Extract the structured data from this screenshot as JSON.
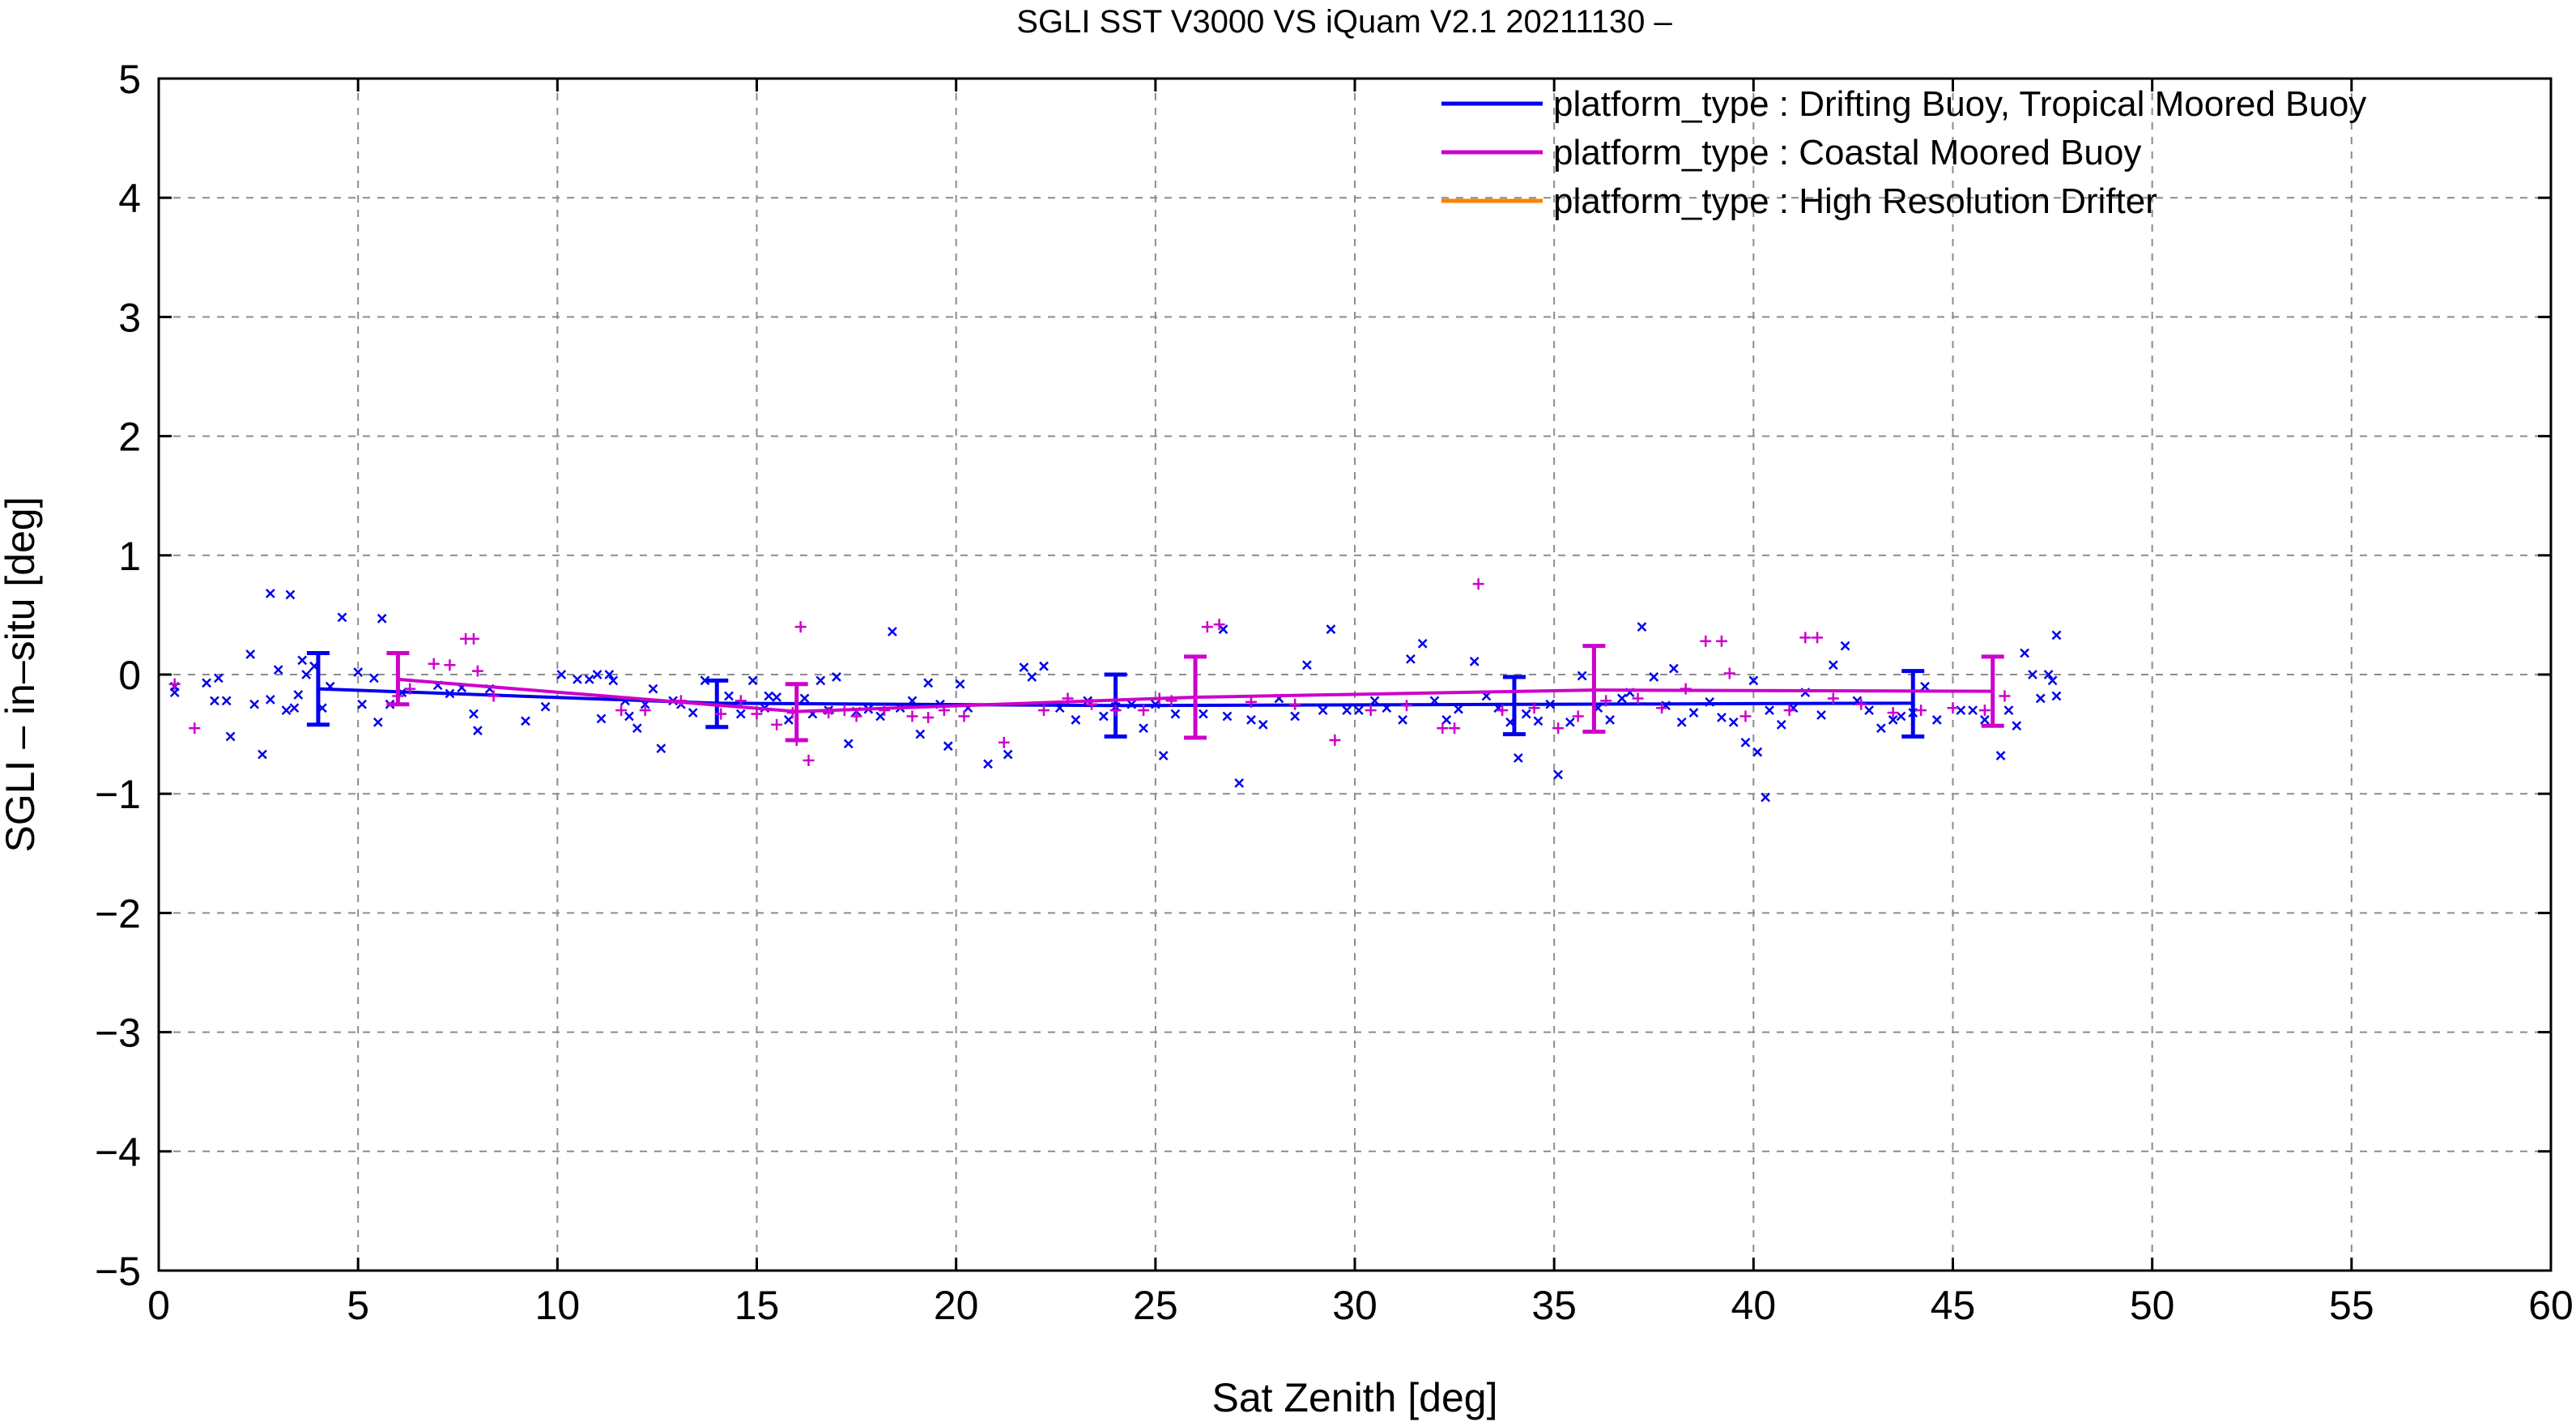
{
  "chart_data": {
    "type": "line",
    "title": "SGLI SST V3000 VS iQuam V2.1 20211130 –",
    "xlabel": "Sat Zenith [deg]",
    "ylabel": "SGLI – in–situ [deg]",
    "xlim": [
      0,
      60
    ],
    "ylim": [
      -5,
      5
    ],
    "x_ticks": [
      0,
      5,
      10,
      15,
      20,
      25,
      30,
      35,
      40,
      45,
      50,
      55,
      60
    ],
    "y_ticks": [
      -5,
      -4,
      -3,
      -2,
      -1,
      0,
      1,
      2,
      3,
      4,
      5
    ],
    "x_tick_labels": [
      "0",
      "5",
      "10",
      "15",
      "20",
      "25",
      "30",
      "35",
      "40",
      "45",
      "50",
      "55",
      "60"
    ],
    "y_tick_labels": [
      "−5",
      "−4",
      "−3",
      "−2",
      "−1",
      "0",
      "1",
      "2",
      "3",
      "4",
      "5"
    ],
    "grid": true,
    "legend_position": "top-right",
    "series": [
      {
        "name": "platform_type : Drifting Buoy, Tropical Moored Buoy",
        "color": "#0000ee",
        "marker": "x",
        "line": {
          "x": [
            4,
            14,
            24,
            34,
            44
          ],
          "y": [
            -0.12,
            -0.24,
            -0.26,
            -0.25,
            -0.24
          ],
          "err_low": [
            -0.42,
            -0.44,
            -0.52,
            -0.5,
            -0.52
          ],
          "err_high": [
            0.18,
            -0.05,
            0.0,
            -0.02,
            0.03
          ]
        },
        "scatter": [
          [
            0.4,
            -0.15
          ],
          [
            0.4,
            -0.1
          ],
          [
            1.2,
            -0.07
          ],
          [
            1.4,
            -0.22
          ],
          [
            1.5,
            -0.03
          ],
          [
            1.7,
            -0.22
          ],
          [
            1.8,
            -0.52
          ],
          [
            2.3,
            0.17
          ],
          [
            2.4,
            -0.25
          ],
          [
            2.6,
            -0.67
          ],
          [
            2.8,
            -0.21
          ],
          [
            2.8,
            0.68
          ],
          [
            3.0,
            0.04
          ],
          [
            3.2,
            -0.3
          ],
          [
            3.3,
            0.67
          ],
          [
            3.4,
            -0.28
          ],
          [
            3.5,
            -0.17
          ],
          [
            3.6,
            0.12
          ],
          [
            3.7,
            0.0
          ],
          [
            3.9,
            0.07
          ],
          [
            4.1,
            -0.28
          ],
          [
            4.3,
            -0.1
          ],
          [
            4.6,
            0.48
          ],
          [
            5.0,
            0.02
          ],
          [
            5.1,
            -0.25
          ],
          [
            5.4,
            -0.03
          ],
          [
            5.5,
            -0.4
          ],
          [
            5.6,
            0.47
          ],
          [
            5.8,
            -0.25
          ],
          [
            6.1,
            -0.15
          ],
          [
            7.0,
            -0.09
          ],
          [
            7.3,
            -0.16
          ],
          [
            7.6,
            -0.11
          ],
          [
            7.9,
            -0.33
          ],
          [
            8.0,
            -0.47
          ],
          [
            8.3,
            -0.12
          ],
          [
            9.2,
            -0.39
          ],
          [
            9.7,
            -0.27
          ],
          [
            10.1,
            0.0
          ],
          [
            10.5,
            -0.04
          ],
          [
            10.8,
            -0.04
          ],
          [
            11.0,
            0.0
          ],
          [
            11.1,
            -0.37
          ],
          [
            11.3,
            0.0
          ],
          [
            11.4,
            -0.05
          ],
          [
            11.7,
            -0.22
          ],
          [
            11.8,
            -0.35
          ],
          [
            12.0,
            -0.45
          ],
          [
            12.2,
            -0.25
          ],
          [
            12.4,
            -0.12
          ],
          [
            12.6,
            -0.62
          ],
          [
            12.9,
            -0.22
          ],
          [
            13.1,
            -0.25
          ],
          [
            13.4,
            -0.32
          ],
          [
            13.7,
            -0.05
          ],
          [
            14.3,
            -0.18
          ],
          [
            14.6,
            -0.33
          ],
          [
            14.9,
            -0.05
          ],
          [
            15.2,
            -0.28
          ],
          [
            15.3,
            -0.18
          ],
          [
            15.5,
            -0.19
          ],
          [
            15.8,
            -0.38
          ],
          [
            16.2,
            -0.2
          ],
          [
            16.4,
            -0.33
          ],
          [
            16.6,
            -0.05
          ],
          [
            16.8,
            -0.3
          ],
          [
            17.0,
            -0.02
          ],
          [
            17.3,
            -0.58
          ],
          [
            17.5,
            -0.31
          ],
          [
            17.8,
            -0.29
          ],
          [
            18.1,
            -0.35
          ],
          [
            18.4,
            0.36
          ],
          [
            18.6,
            -0.28
          ],
          [
            18.9,
            -0.22
          ],
          [
            19.1,
            -0.5
          ],
          [
            19.3,
            -0.07
          ],
          [
            19.6,
            -0.25
          ],
          [
            19.8,
            -0.6
          ],
          [
            20.1,
            -0.08
          ],
          [
            20.3,
            -0.28
          ],
          [
            20.8,
            -0.75
          ],
          [
            21.3,
            -0.67
          ],
          [
            21.7,
            0.06
          ],
          [
            21.9,
            -0.02
          ],
          [
            22.2,
            0.07
          ],
          [
            22.6,
            -0.28
          ],
          [
            23.0,
            -0.38
          ],
          [
            23.3,
            -0.22
          ],
          [
            23.7,
            -0.35
          ],
          [
            24.0,
            -0.27
          ],
          [
            24.4,
            -0.25
          ],
          [
            24.7,
            -0.45
          ],
          [
            25.0,
            -0.25
          ],
          [
            25.2,
            -0.68
          ],
          [
            25.5,
            -0.33
          ],
          [
            26.2,
            -0.33
          ],
          [
            26.7,
            0.38
          ],
          [
            26.8,
            -0.35
          ],
          [
            27.1,
            -0.91
          ],
          [
            27.4,
            -0.38
          ],
          [
            27.7,
            -0.42
          ],
          [
            28.1,
            -0.2
          ],
          [
            28.5,
            -0.35
          ],
          [
            28.8,
            0.08
          ],
          [
            29.2,
            -0.3
          ],
          [
            29.4,
            0.38
          ],
          [
            29.8,
            -0.3
          ],
          [
            30.1,
            -0.3
          ],
          [
            30.5,
            -0.22
          ],
          [
            30.8,
            -0.28
          ],
          [
            31.2,
            -0.38
          ],
          [
            31.4,
            0.13
          ],
          [
            31.7,
            0.26
          ],
          [
            32.0,
            -0.22
          ],
          [
            32.3,
            -0.38
          ],
          [
            32.6,
            -0.29
          ],
          [
            33.0,
            0.11
          ],
          [
            33.3,
            -0.18
          ],
          [
            33.6,
            -0.28
          ],
          [
            33.9,
            -0.4
          ],
          [
            34.1,
            -0.7
          ],
          [
            34.3,
            -0.33
          ],
          [
            34.6,
            -0.39
          ],
          [
            34.9,
            -0.25
          ],
          [
            35.1,
            -0.84
          ],
          [
            35.4,
            -0.4
          ],
          [
            35.7,
            -0.01
          ],
          [
            36.1,
            -0.28
          ],
          [
            36.4,
            -0.38
          ],
          [
            36.7,
            -0.2
          ],
          [
            36.9,
            -0.15
          ],
          [
            37.2,
            0.4
          ],
          [
            37.5,
            -0.02
          ],
          [
            37.8,
            -0.26
          ],
          [
            38.0,
            0.05
          ],
          [
            38.2,
            -0.4
          ],
          [
            38.5,
            -0.32
          ],
          [
            38.9,
            -0.23
          ],
          [
            39.2,
            -0.36
          ],
          [
            39.5,
            -0.4
          ],
          [
            39.8,
            -0.57
          ],
          [
            40.0,
            -0.05
          ],
          [
            40.1,
            -0.65
          ],
          [
            40.3,
            -1.03
          ],
          [
            40.4,
            -0.3
          ],
          [
            40.7,
            -0.42
          ],
          [
            41.0,
            -0.28
          ],
          [
            41.3,
            -0.15
          ],
          [
            41.7,
            -0.34
          ],
          [
            42.0,
            0.08
          ],
          [
            42.3,
            0.24
          ],
          [
            42.6,
            -0.22
          ],
          [
            42.9,
            -0.3
          ],
          [
            43.2,
            -0.45
          ],
          [
            43.5,
            -0.38
          ],
          [
            43.7,
            -0.35
          ],
          [
            44.0,
            -0.32
          ],
          [
            44.3,
            -0.1
          ],
          [
            44.6,
            -0.38
          ],
          [
            45.2,
            -0.3
          ],
          [
            45.5,
            -0.3
          ],
          [
            45.8,
            -0.38
          ],
          [
            46.2,
            -0.68
          ],
          [
            46.4,
            -0.3
          ],
          [
            46.6,
            -0.43
          ],
          [
            46.8,
            0.18
          ],
          [
            47.0,
            0.0
          ],
          [
            47.2,
            -0.2
          ],
          [
            47.4,
            0.0
          ],
          [
            47.6,
            0.33
          ],
          [
            47.6,
            -0.18
          ],
          [
            47.5,
            -0.05
          ]
        ]
      },
      {
        "name": "platform_type : Coastal Moored Buoy",
        "color": "#cc00cc",
        "marker": "+",
        "line": {
          "x": [
            6,
            16,
            26,
            36,
            46
          ],
          "y": [
            -0.04,
            -0.31,
            -0.19,
            -0.13,
            -0.14
          ],
          "err_low": [
            -0.25,
            -0.55,
            -0.53,
            -0.48,
            -0.43
          ],
          "err_high": [
            0.18,
            -0.08,
            0.15,
            0.24,
            0.15
          ]
        },
        "scatter": [
          [
            0.4,
            -0.08
          ],
          [
            0.9,
            -0.45
          ],
          [
            6.0,
            -0.18
          ],
          [
            6.3,
            -0.12
          ],
          [
            6.9,
            0.09
          ],
          [
            7.3,
            0.08
          ],
          [
            7.7,
            0.3
          ],
          [
            7.9,
            0.3
          ],
          [
            8.0,
            0.03
          ],
          [
            8.4,
            -0.18
          ],
          [
            11.6,
            -0.3
          ],
          [
            12.2,
            -0.3
          ],
          [
            13.1,
            -0.22
          ],
          [
            14.1,
            -0.33
          ],
          [
            14.6,
            -0.22
          ],
          [
            15.0,
            -0.33
          ],
          [
            15.5,
            -0.42
          ],
          [
            15.9,
            -0.32
          ],
          [
            16.0,
            -0.55
          ],
          [
            16.3,
            -0.72
          ],
          [
            16.1,
            0.4
          ],
          [
            16.8,
            -0.32
          ],
          [
            17.2,
            -0.3
          ],
          [
            17.5,
            -0.35
          ],
          [
            18.2,
            -0.3
          ],
          [
            18.9,
            -0.35
          ],
          [
            19.3,
            -0.36
          ],
          [
            19.7,
            -0.3
          ],
          [
            20.2,
            -0.35
          ],
          [
            21.2,
            -0.57
          ],
          [
            22.2,
            -0.3
          ],
          [
            22.8,
            -0.2
          ],
          [
            23.4,
            -0.25
          ],
          [
            24.0,
            -0.3
          ],
          [
            24.7,
            -0.3
          ],
          [
            25.1,
            -0.2
          ],
          [
            25.4,
            -0.22
          ],
          [
            26.3,
            0.4
          ],
          [
            26.6,
            0.42
          ],
          [
            27.4,
            -0.23
          ],
          [
            28.5,
            -0.25
          ],
          [
            29.5,
            -0.55
          ],
          [
            30.4,
            -0.3
          ],
          [
            31.3,
            -0.26
          ],
          [
            32.2,
            -0.45
          ],
          [
            32.5,
            -0.45
          ],
          [
            33.1,
            0.76
          ],
          [
            33.7,
            -0.3
          ],
          [
            34.5,
            -0.28
          ],
          [
            35.1,
            -0.45
          ],
          [
            35.6,
            -0.35
          ],
          [
            36.3,
            -0.22
          ],
          [
            37.1,
            -0.2
          ],
          [
            37.7,
            -0.28
          ],
          [
            38.3,
            -0.12
          ],
          [
            38.8,
            0.28
          ],
          [
            39.2,
            0.28
          ],
          [
            39.4,
            0.01
          ],
          [
            39.8,
            -0.35
          ],
          [
            40.9,
            -0.3
          ],
          [
            41.3,
            0.31
          ],
          [
            41.6,
            0.31
          ],
          [
            42.0,
            -0.2
          ],
          [
            42.7,
            -0.25
          ],
          [
            43.5,
            -0.32
          ],
          [
            44.2,
            -0.3
          ],
          [
            45.0,
            -0.28
          ],
          [
            45.8,
            -0.3
          ],
          [
            46.3,
            -0.18
          ]
        ]
      },
      {
        "name": "platform_type : High Resolution Drifter",
        "color": "#ff8000",
        "marker": "none",
        "line": {
          "x": [],
          "y": [],
          "err_low": [],
          "err_high": []
        },
        "scatter": []
      }
    ]
  }
}
